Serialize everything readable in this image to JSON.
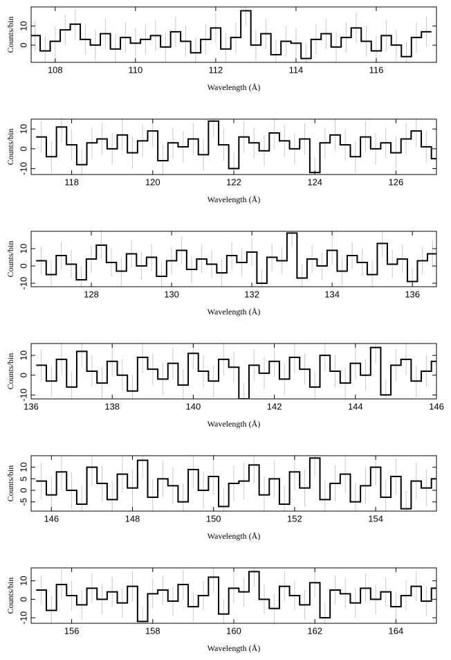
{
  "chart_data": [
    {
      "type": "step",
      "xlabel": "Wavelength (Å)",
      "ylabel": "Counts/bin",
      "color": "#000000",
      "error_color": "#c8c8c8",
      "error": 8,
      "xlim": [
        107.4,
        117.5
      ],
      "xticks": [
        108,
        110,
        112,
        114,
        116
      ],
      "ylim": [
        -9,
        20
      ],
      "yticks": [
        0,
        10
      ],
      "x": [
        107.5,
        107.75,
        108,
        108.25,
        108.5,
        108.75,
        109,
        109.25,
        109.5,
        109.75,
        110,
        110.25,
        110.5,
        110.75,
        111,
        111.25,
        111.5,
        111.75,
        112,
        112.25,
        112.5,
        112.75,
        113,
        113.25,
        113.5,
        113.75,
        114,
        114.25,
        114.5,
        114.75,
        115,
        115.25,
        115.5,
        115.75,
        116,
        116.25,
        116.5,
        116.75,
        117,
        117.25
      ],
      "values": [
        5,
        -3,
        2,
        8,
        11,
        3,
        0,
        6,
        -2,
        4,
        1,
        3,
        5,
        -1,
        7,
        2,
        -4,
        3,
        9,
        -2,
        4,
        18,
        0,
        6,
        -5,
        2,
        1,
        -7,
        3,
        6,
        -1,
        4,
        9,
        2,
        -3,
        5,
        0,
        -6,
        4,
        7
      ]
    },
    {
      "type": "step",
      "xlabel": "Wavelength (Å)",
      "ylabel": "Counts/bin",
      "color": "#000000",
      "error_color": "#c8c8c8",
      "error": 8,
      "xlim": [
        117,
        127
      ],
      "xticks": [
        118,
        120,
        122,
        124,
        126
      ],
      "ylim": [
        -13,
        15
      ],
      "yticks": [
        -10,
        0,
        10
      ],
      "x": [
        117.25,
        117.5,
        117.75,
        118,
        118.25,
        118.5,
        118.75,
        119,
        119.25,
        119.5,
        119.75,
        120,
        120.25,
        120.5,
        120.75,
        121,
        121.25,
        121.5,
        121.75,
        122,
        122.25,
        122.5,
        122.75,
        123,
        123.25,
        123.5,
        123.75,
        124,
        124.25,
        124.5,
        124.75,
        125,
        125.25,
        125.5,
        125.75,
        126,
        126.25,
        126.5,
        126.75,
        127
      ],
      "values": [
        6,
        -4,
        11,
        2,
        -8,
        3,
        5,
        0,
        7,
        -2,
        4,
        9,
        -6,
        3,
        1,
        5,
        -3,
        14,
        2,
        -10,
        6,
        3,
        -1,
        8,
        4,
        0,
        5,
        -12,
        3,
        7,
        2,
        -4,
        6,
        0,
        3,
        -2,
        5,
        9,
        1,
        -5
      ]
    },
    {
      "type": "step",
      "xlabel": "Wavelength (Å)",
      "ylabel": "Counts/bin",
      "color": "#000000",
      "error_color": "#c8c8c8",
      "error": 8,
      "xlim": [
        126.5,
        136.6
      ],
      "xticks": [
        128,
        130,
        132,
        134,
        136
      ],
      "ylim": [
        -12,
        20
      ],
      "yticks": [
        -10,
        0,
        10
      ],
      "x": [
        126.75,
        127,
        127.25,
        127.5,
        127.75,
        128,
        128.25,
        128.5,
        128.75,
        129,
        129.25,
        129.5,
        129.75,
        130,
        130.25,
        130.5,
        130.75,
        131,
        131.25,
        131.5,
        131.75,
        132,
        132.25,
        132.5,
        132.75,
        133,
        133.25,
        133.5,
        133.75,
        134,
        134.25,
        134.5,
        134.75,
        135,
        135.25,
        135.5,
        135.75,
        136,
        136.25,
        136.5
      ],
      "values": [
        3,
        -5,
        6,
        1,
        -8,
        4,
        12,
        2,
        -3,
        7,
        0,
        5,
        -6,
        3,
        9,
        -2,
        4,
        1,
        -4,
        6,
        2,
        8,
        -10,
        5,
        3,
        19,
        -7,
        4,
        0,
        9,
        -3,
        6,
        2,
        -5,
        13,
        1,
        4,
        -9,
        3,
        7
      ]
    },
    {
      "type": "step",
      "xlabel": "Wavelength (Å)",
      "ylabel": "Counts/bin",
      "color": "#000000",
      "error_color": "#c8c8c8",
      "error": 8,
      "xlim": [
        136,
        146
      ],
      "xticks": [
        136,
        138,
        140,
        142,
        144,
        146
      ],
      "ylim": [
        -12,
        16
      ],
      "yticks": [
        -10,
        0,
        10
      ],
      "x": [
        136.25,
        136.5,
        136.75,
        137,
        137.25,
        137.5,
        137.75,
        138,
        138.25,
        138.5,
        138.75,
        139,
        139.25,
        139.5,
        139.75,
        140,
        140.25,
        140.5,
        140.75,
        141,
        141.25,
        141.5,
        141.75,
        142,
        142.25,
        142.5,
        142.75,
        143,
        143.25,
        143.5,
        143.75,
        144,
        144.25,
        144.5,
        144.75,
        145,
        145.25,
        145.5,
        145.75,
        146
      ],
      "values": [
        5,
        -3,
        8,
        -6,
        12,
        2,
        -4,
        7,
        0,
        -8,
        9,
        3,
        -2,
        6,
        -5,
        11,
        2,
        -3,
        8,
        4,
        -12,
        5,
        1,
        7,
        -2,
        9,
        3,
        -6,
        10,
        2,
        -4,
        6,
        0,
        14,
        -10,
        5,
        8,
        -3,
        2,
        7
      ]
    },
    {
      "type": "step",
      "xlabel": "Wavelength (Å)",
      "ylabel": "Counts/bin",
      "color": "#000000",
      "error_color": "#c8c8c8",
      "error": 8,
      "xlim": [
        145.5,
        155.5
      ],
      "xticks": [
        146,
        148,
        150,
        152,
        154
      ],
      "ylim": [
        -9,
        15
      ],
      "yticks": [
        -5,
        0,
        5,
        10
      ],
      "x": [
        145.75,
        146,
        146.25,
        146.5,
        146.75,
        147,
        147.25,
        147.5,
        147.75,
        148,
        148.25,
        148.5,
        148.75,
        149,
        149.25,
        149.5,
        149.75,
        150,
        150.25,
        150.5,
        150.75,
        151,
        151.25,
        151.5,
        151.75,
        152,
        152.25,
        152.5,
        152.75,
        153,
        153.25,
        153.5,
        153.75,
        154,
        154.25,
        154.5,
        154.75,
        155,
        155.25,
        155.5
      ],
      "values": [
        4,
        -2,
        8,
        0,
        -6,
        10,
        3,
        -4,
        7,
        1,
        13,
        -3,
        5,
        2,
        -5,
        9,
        0,
        6,
        -7,
        3,
        4,
        11,
        -2,
        5,
        -6,
        8,
        1,
        14,
        -4,
        3,
        7,
        -5,
        2,
        10,
        -3,
        6,
        -8,
        4,
        1,
        5
      ]
    },
    {
      "type": "step",
      "xlabel": "Wavelength (Å)",
      "ylabel": "Counts/bin",
      "color": "#000000",
      "error_color": "#c8c8c8",
      "error": 8,
      "xlim": [
        155,
        165
      ],
      "xticks": [
        156,
        158,
        160,
        162,
        164
      ],
      "ylim": [
        -13,
        17
      ],
      "yticks": [
        -10,
        0,
        10
      ],
      "x": [
        155.25,
        155.5,
        155.75,
        156,
        156.25,
        156.5,
        156.75,
        157,
        157.25,
        157.5,
        157.75,
        158,
        158.25,
        158.5,
        158.75,
        159,
        159.25,
        159.5,
        159.75,
        160,
        160.25,
        160.5,
        160.75,
        161,
        161.25,
        161.5,
        161.75,
        162,
        162.25,
        162.5,
        162.75,
        163,
        163.25,
        163.5,
        163.75,
        164,
        164.25,
        164.5,
        164.75,
        165
      ],
      "values": [
        5,
        -6,
        8,
        2,
        -3,
        6,
        0,
        4,
        -2,
        7,
        -12,
        3,
        5,
        -1,
        8,
        -4,
        2,
        12,
        -8,
        6,
        4,
        15,
        0,
        -5,
        7,
        2,
        -3,
        9,
        -10,
        5,
        3,
        -2,
        6,
        0,
        4,
        -4,
        2,
        7,
        -1,
        6
      ]
    }
  ]
}
